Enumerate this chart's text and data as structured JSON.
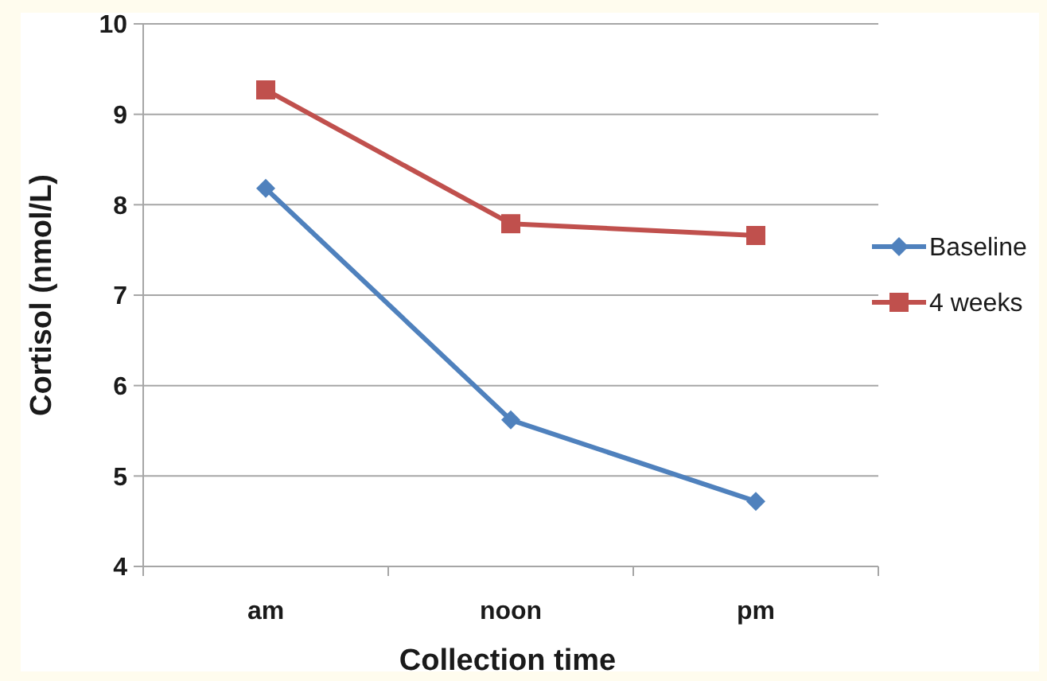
{
  "chart_data": {
    "type": "line",
    "xlabel": "Collection time",
    "ylabel": "Cortisol (nmol/L)",
    "categories": [
      "am",
      "noon",
      "pm"
    ],
    "series": [
      {
        "name": "Baseline",
        "color": "#4f81bd",
        "marker": "diamond",
        "values": [
          8.18,
          5.62,
          4.72
        ]
      },
      {
        "name": "4 weeks",
        "color": "#c0504d",
        "marker": "square",
        "values": [
          9.27,
          7.79,
          7.66
        ]
      }
    ],
    "ylim": [
      4,
      10
    ],
    "yticks": [
      4,
      5,
      6,
      7,
      8,
      9,
      10
    ],
    "grid": "y",
    "legend": "right"
  }
}
